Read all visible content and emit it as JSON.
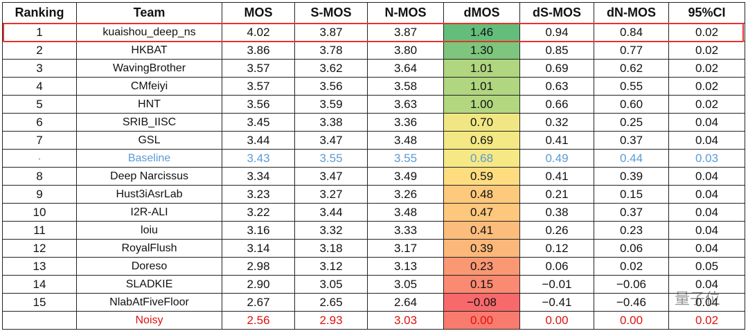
{
  "table": {
    "header": [
      "Ranking",
      "Team",
      "MOS",
      "S-MOS",
      "N-MOS",
      "dMOS",
      "dS-MOS",
      "dN-MOS",
      "95%CI"
    ],
    "rows": [
      [
        "1",
        "kuaishou_deep_ns",
        "4.02",
        "3.87",
        "3.87",
        "1.46",
        "0.94",
        "0.84",
        "0.02"
      ],
      [
        "2",
        "HKBAT",
        "3.86",
        "3.78",
        "3.80",
        "1.30",
        "0.85",
        "0.77",
        "0.02"
      ],
      [
        "3",
        "WavingBrother",
        "3.57",
        "3.62",
        "3.64",
        "1.01",
        "0.69",
        "0.62",
        "0.02"
      ],
      [
        "4",
        "CMfeiyi",
        "3.57",
        "3.56",
        "3.58",
        "1.01",
        "0.63",
        "0.55",
        "0.02"
      ],
      [
        "5",
        "HNT",
        "3.56",
        "3.59",
        "3.63",
        "1.00",
        "0.66",
        "0.60",
        "0.02"
      ],
      [
        "6",
        "SRIB_IISC",
        "3.45",
        "3.38",
        "3.36",
        "0.70",
        "0.32",
        "0.25",
        "0.04"
      ],
      [
        "7",
        "GSL",
        "3.44",
        "3.47",
        "3.48",
        "0.69",
        "0.41",
        "0.37",
        "0.04"
      ],
      [
        "·",
        "Baseline",
        "3.43",
        "3.55",
        "3.55",
        "0.68",
        "0.49",
        "0.44",
        "0.03"
      ],
      [
        "8",
        "Deep Narcissus",
        "3.34",
        "3.47",
        "3.49",
        "0.59",
        "0.41",
        "0.39",
        "0.04"
      ],
      [
        "9",
        "Hust3iAsrLab",
        "3.23",
        "3.27",
        "3.26",
        "0.48",
        "0.21",
        "0.15",
        "0.04"
      ],
      [
        "10",
        "I2R-ALI",
        "3.22",
        "3.44",
        "3.48",
        "0.47",
        "0.38",
        "0.37",
        "0.04"
      ],
      [
        "11",
        "loiu",
        "3.16",
        "3.32",
        "3.33",
        "0.41",
        "0.26",
        "0.23",
        "0.04"
      ],
      [
        "12",
        "RoyalFlush",
        "3.14",
        "3.18",
        "3.17",
        "0.39",
        "0.12",
        "0.06",
        "0.04"
      ],
      [
        "13",
        "Doreso",
        "2.98",
        "3.12",
        "3.13",
        "0.23",
        "0.06",
        "0.02",
        "0.05"
      ],
      [
        "14",
        "SLADKIE",
        "2.90",
        "3.05",
        "3.05",
        "0.15",
        "−0.01",
        "−0.06",
        "0.04"
      ],
      [
        "15",
        "NlabAtFiveFloor",
        "2.67",
        "2.65",
        "2.64",
        "−0.08",
        "−0.41",
        "−0.46",
        "0.04"
      ],
      [
        "",
        "Noisy",
        "2.56",
        "2.93",
        "3.03",
        "0.00",
        "0.00",
        "0.00",
        "0.02"
      ]
    ],
    "dmos_colors": [
      "#63be7b",
      "#7ec57d",
      "#b0d680",
      "#b0d680",
      "#b2d780",
      "#f0e784",
      "#f3e884",
      "#f6e884",
      "#fedd81",
      "#fdc97d",
      "#fdc77d",
      "#fcbc7b",
      "#fcb87a",
      "#fa9873",
      "#fa8a71",
      "#f8696b",
      "#f97b6e"
    ]
  },
  "watermark": "量子位"
}
